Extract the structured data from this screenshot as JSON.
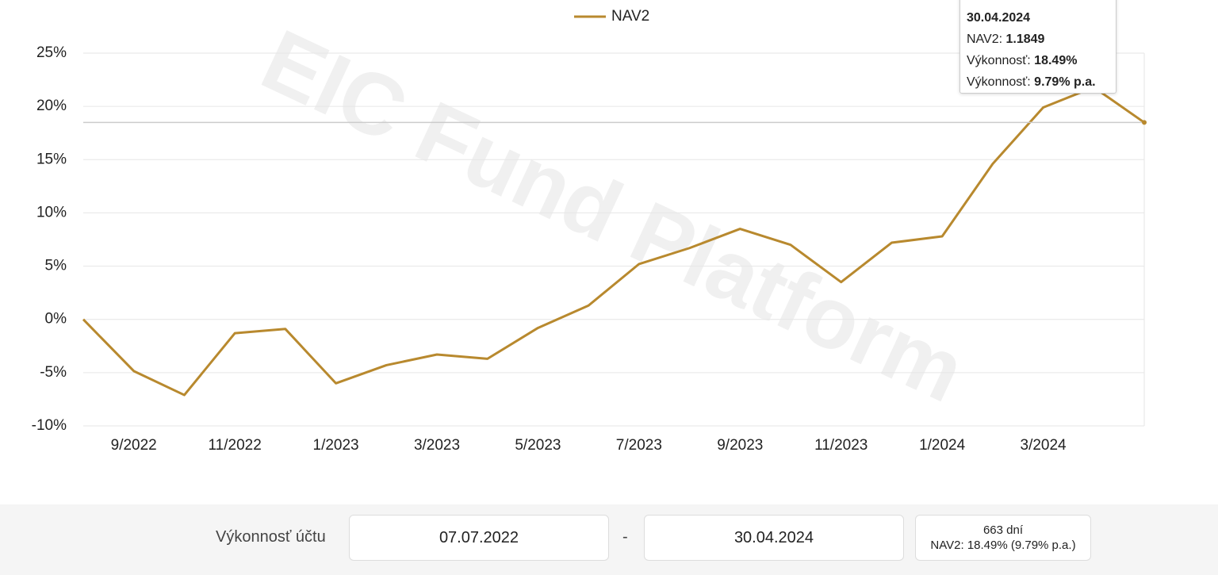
{
  "chart_data": {
    "type": "line",
    "watermark": "EIC Fund Platform",
    "categories": [
      null,
      "9/2022",
      null,
      "11/2022",
      null,
      "1/2023",
      null,
      "3/2023",
      null,
      "5/2023",
      null,
      "7/2023",
      null,
      "9/2023",
      null,
      "11/2023",
      null,
      "1/2024",
      null,
      "3/2024",
      null,
      null
    ],
    "series": [
      {
        "name": "NAV2",
        "color": "#b8892e",
        "values": [
          0,
          -4.85,
          -7.1,
          -1.3,
          -0.9,
          -6.0,
          -4.3,
          -3.3,
          -3.7,
          -0.8,
          1.3,
          5.2,
          6.7,
          8.5,
          7.0,
          3.5,
          7.2,
          7.8,
          14.6,
          19.9,
          21.8,
          18.49
        ]
      }
    ],
    "ylim": [
      -10,
      25
    ],
    "yticks": [
      {
        "value": -10,
        "label": "-10%"
      },
      {
        "value": -5,
        "label": "-5%"
      },
      {
        "value": 0,
        "label": "0%"
      },
      {
        "value": 5,
        "label": "5%"
      },
      {
        "value": 10,
        "label": "10%"
      },
      {
        "value": 15,
        "label": "15%"
      },
      {
        "value": 20,
        "label": "20%"
      },
      {
        "value": 25,
        "label": "25%"
      }
    ],
    "grid": true,
    "legend": "top"
  },
  "tooltip": {
    "date": "30.04.2024",
    "nav_label": "NAV2:",
    "nav_value": "1.1849",
    "perf_label": "Výkonnosť:",
    "perf_value": "18.49%",
    "perf_pa_label": "Výkonnosť:",
    "perf_pa_value": "9.79% p.a."
  },
  "footer": {
    "label": "Výkonnosť účtu",
    "date_from": "07.07.2022",
    "separator": "-",
    "date_to": "30.04.2024",
    "days": "663 dní",
    "summary": "NAV2: 18.49% (9.79% p.a.)"
  }
}
